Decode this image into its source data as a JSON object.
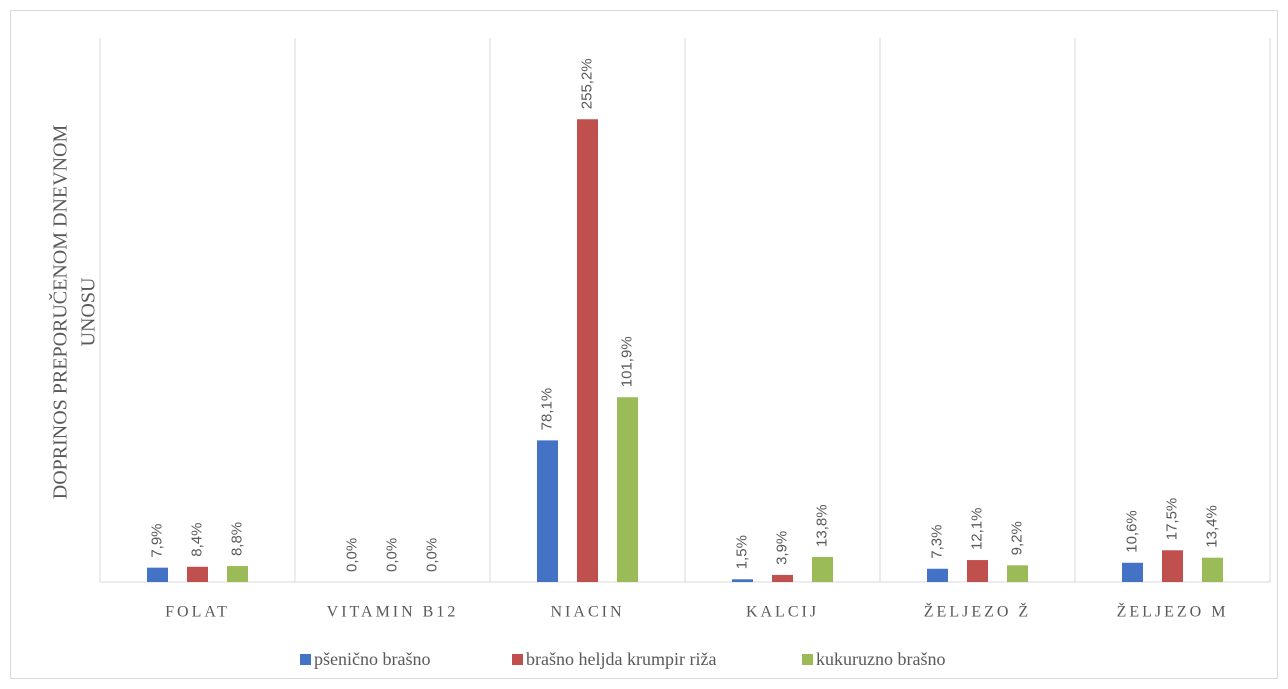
{
  "chart_data": {
    "type": "bar",
    "y_label": [
      "DOPRINOS PREPORUČENOM DNEVNOM",
      "UNOSU"
    ],
    "categories": [
      "FOLAT",
      "VITAMIN B12",
      "NIACIN",
      "KALCIJ",
      "ŽELJEZO Ž",
      "ŽELJEZO M"
    ],
    "series": [
      {
        "name": "pšenično brašno",
        "color": "#4472c4",
        "values": [
          7.9,
          0.0,
          78.1,
          1.5,
          7.3,
          10.6
        ],
        "value_labels": [
          "7,9%",
          "0,0%",
          "78,1%",
          "1,5%",
          "7,3%",
          "10,6%"
        ]
      },
      {
        "name": "brašno heljda krumpir riža",
        "color": "#c0504d",
        "values": [
          8.4,
          0.0,
          255.2,
          3.9,
          12.1,
          17.5
        ],
        "value_labels": [
          "8,4%",
          "0,0%",
          "255,2%",
          "3,9%",
          "12,1%",
          "17,5%"
        ]
      },
      {
        "name": "kukuruzno brašno",
        "color": "#9bbb59",
        "values": [
          8.8,
          0.0,
          101.9,
          13.8,
          9.2,
          13.4
        ],
        "value_labels": [
          "8,8%",
          "0,0%",
          "101,9%",
          "13,8%",
          "9,2%",
          "13,4%"
        ]
      }
    ],
    "ylim": [
      0,
      300
    ],
    "legend": "bottom"
  }
}
